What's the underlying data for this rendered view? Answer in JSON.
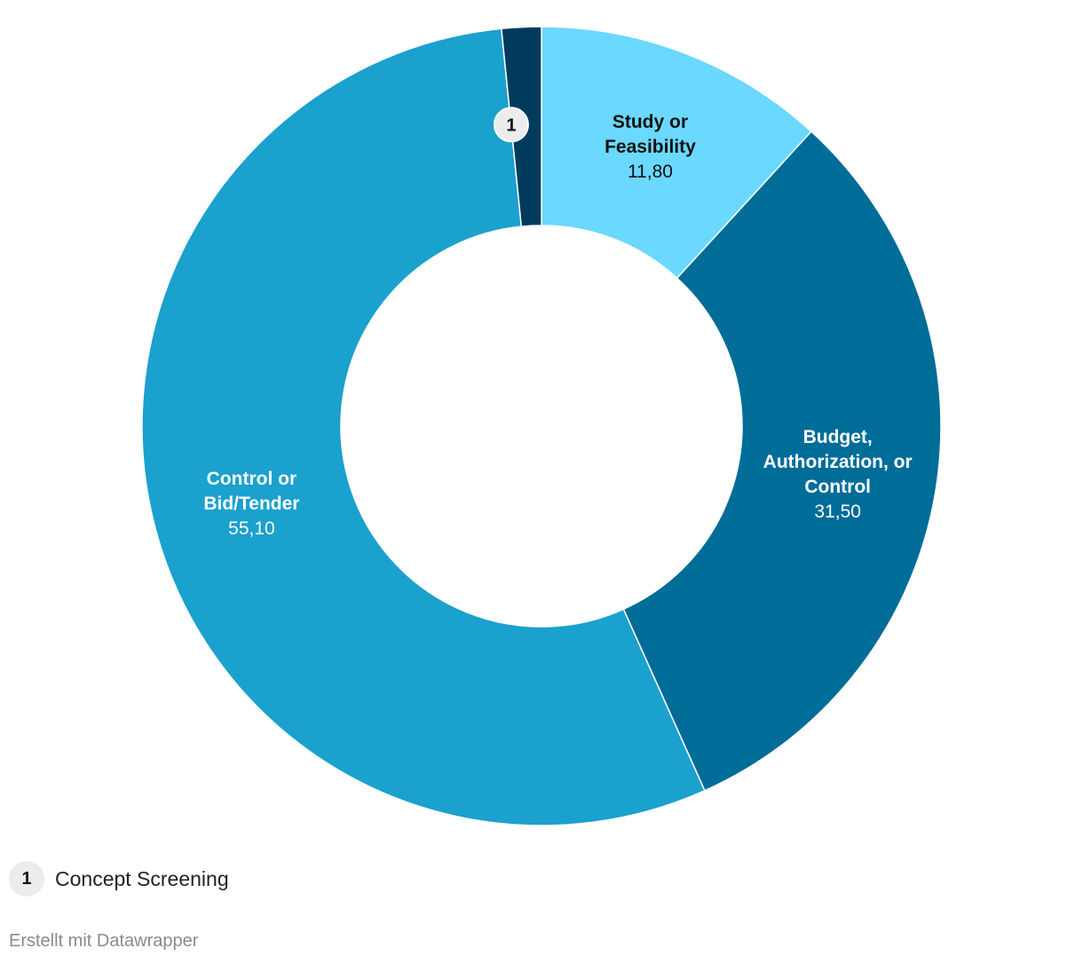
{
  "chart_data": {
    "type": "pie",
    "subtype": "donut",
    "slices": [
      {
        "label": "Study or Feasibility",
        "value": 11.8,
        "value_text": "11,80",
        "color": "#6ad8ff",
        "text_color": "#111111",
        "label_lines": [
          "Study or",
          "Feasibility"
        ]
      },
      {
        "label": "Budget, Authorization, or Control",
        "value": 31.5,
        "value_text": "31,50",
        "color": "#006d99",
        "text_color": "#ffffff",
        "label_lines": [
          "Budget,",
          "Authorization, or",
          "Control"
        ]
      },
      {
        "label": "Control or Bid/Tender",
        "value": 55.1,
        "value_text": "55,10",
        "color": "#1aa1ce",
        "text_color": "#ffffff",
        "label_lines": [
          "Control or",
          "Bid/Tender"
        ]
      },
      {
        "label": "Concept Screening",
        "value": 1.6,
        "value_text": "",
        "color": "#003b5e",
        "text_color": "#111111",
        "label_lines": [],
        "footnote_marker": "1"
      }
    ]
  },
  "legend": {
    "items": [
      {
        "marker": "1",
        "label": "Concept Screening"
      }
    ]
  },
  "footer": {
    "credit": "Erstellt mit Datawrapper"
  }
}
